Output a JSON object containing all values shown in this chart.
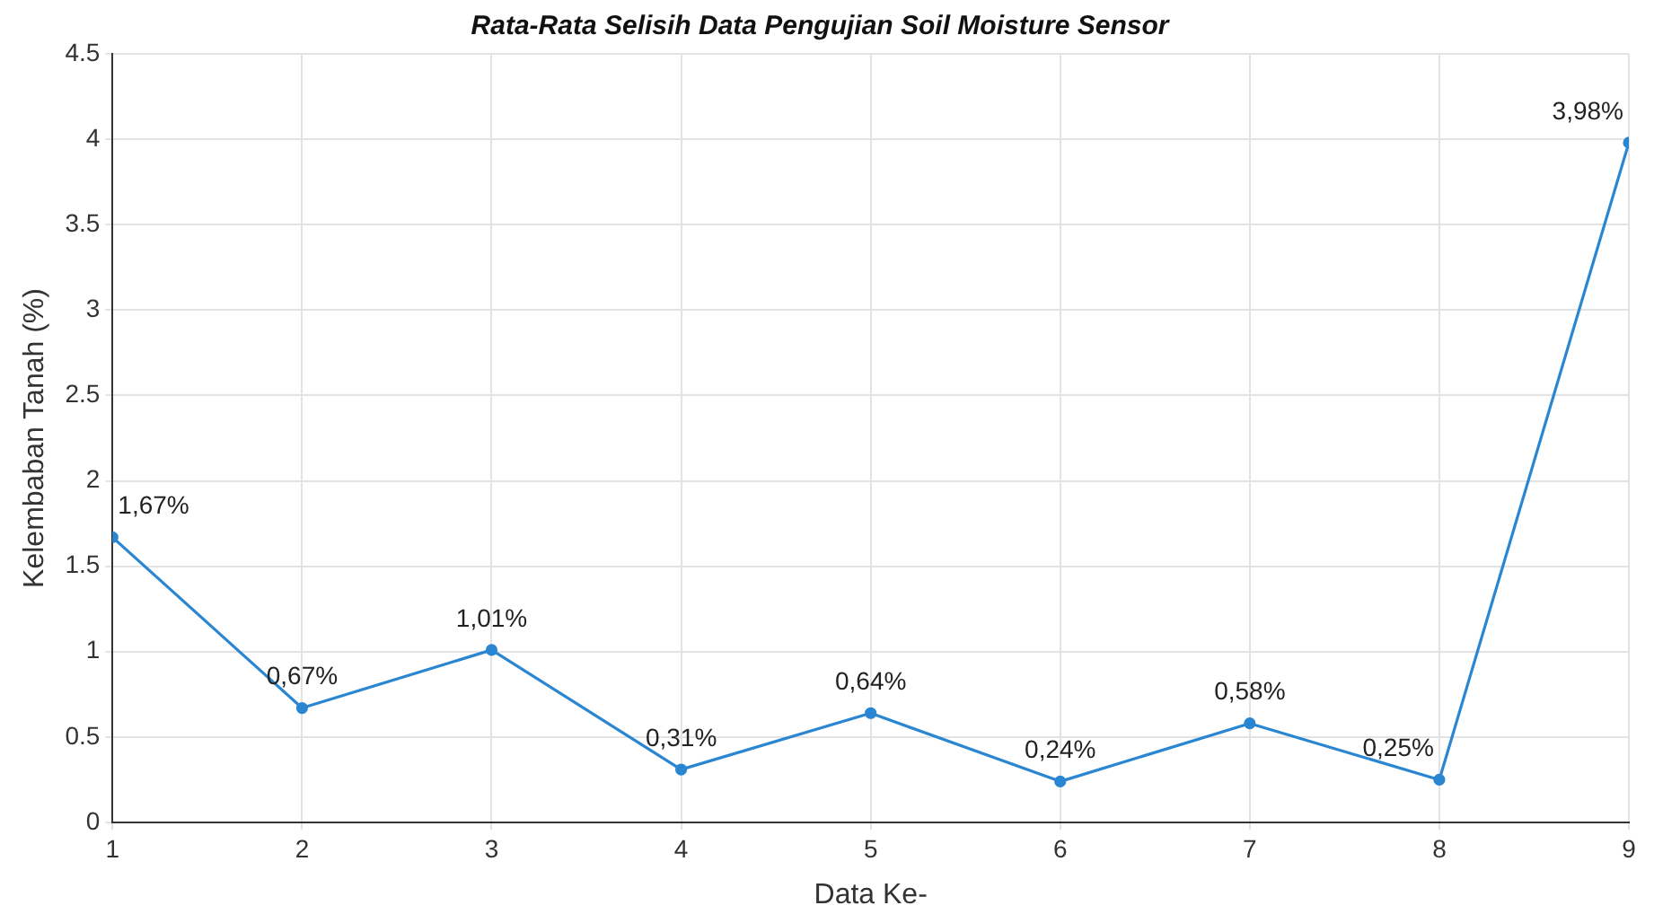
{
  "chart_data": {
    "type": "line",
    "title": "Rata-Rata Selisih Data Pengujian Soil Moisture Sensor",
    "xlabel": "Data Ke-",
    "ylabel": "Kelembaban Tanah (%)",
    "x": [
      1,
      2,
      3,
      4,
      5,
      6,
      7,
      8,
      9
    ],
    "series": [
      {
        "color": "#2a86d1",
        "values": [
          1.67,
          0.67,
          1.01,
          0.31,
          0.64,
          0.24,
          0.58,
          0.25,
          3.98
        ],
        "value_labels": [
          "1,67%",
          "0,67%",
          "1,01%",
          "0,31%",
          "0,64%",
          "0,24%",
          "0,58%",
          "0,25%",
          "3,98%"
        ]
      }
    ],
    "xlim": [
      1,
      9
    ],
    "xticks": [
      1,
      2,
      3,
      4,
      5,
      6,
      7,
      8,
      9
    ],
    "ylim": [
      0,
      4.5
    ],
    "yticks": [
      0,
      0.5,
      1,
      1.5,
      2,
      2.5,
      3,
      3.5,
      4,
      4.5
    ],
    "grid": true,
    "legend": false,
    "marker": "circle",
    "line_style": "solid"
  }
}
